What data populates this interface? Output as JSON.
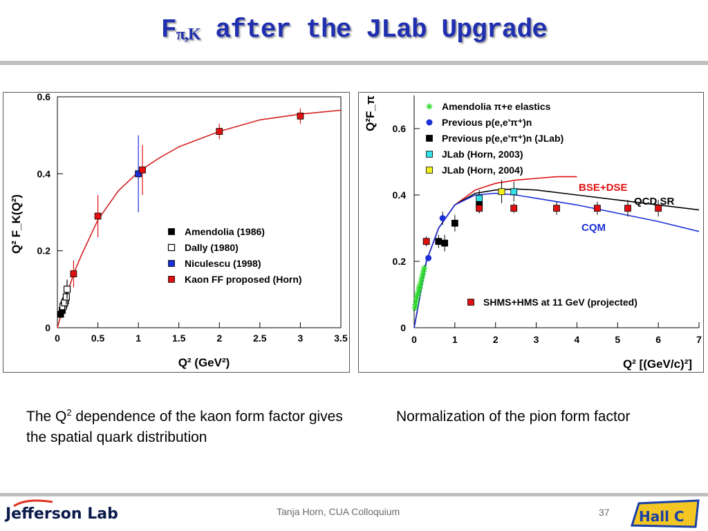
{
  "slide": {
    "title_main": "F",
    "title_sub": "π,K",
    "title_rest": " after the JLab Upgrade",
    "caption_left_pre": "The Q",
    "caption_left_sup": "2",
    "caption_left_post": " dependence of the kaon form factor gives the spatial quark distribution",
    "caption_right": "Normalization of the pion form factor",
    "footer": "Tanja Horn, CUA Colloquium",
    "page_number": "37",
    "logo_text": "Jefferson Lab",
    "logo_right_text": "Hall C",
    "colors": {
      "title": "#1f2fb0",
      "rule": "#bfbfbf"
    }
  },
  "chart_data": [
    {
      "type": "scatter",
      "xlim": [
        0,
        3.5
      ],
      "ylim": [
        0,
        0.6
      ],
      "xticks": [
        "0",
        "0.5",
        "1",
        "1.5",
        "2",
        "2.5",
        "3",
        "3.5"
      ],
      "xtick_values": [
        0,
        0.5,
        1,
        1.5,
        2,
        2.5,
        3,
        3.5
      ],
      "yticks": [
        "0",
        "0.2",
        "0.4",
        "0.6"
      ],
      "ytick_values": [
        0,
        0.2,
        0.4,
        0.6
      ],
      "xlabel": "Q² (GeV²)",
      "ylabel": "Q² F_K(Q²)",
      "legend_position": "bottom-right",
      "series": [
        {
          "name": "Amendolia (1986)",
          "marker": "filled-square",
          "color": "#000000",
          "x": [
            0.04,
            0.06,
            0.08,
            0.1
          ],
          "y": [
            0.035,
            0.045,
            0.06,
            0.07
          ],
          "err": [
            0.01,
            0.01,
            0.015,
            0.02
          ]
        },
        {
          "name": "Dally (1980)",
          "marker": "open-square",
          "color": "#000000",
          "x": [
            0.07,
            0.09,
            0.11,
            0.12
          ],
          "y": [
            0.055,
            0.065,
            0.08,
            0.1
          ],
          "err": [
            0.015,
            0.02,
            0.02,
            0.025
          ]
        },
        {
          "name": "Niculescu (1998)",
          "marker": "filled-square",
          "color": "#1b2fd8",
          "x": [
            1.0
          ],
          "y": [
            0.4
          ],
          "err": [
            0.1
          ]
        },
        {
          "name": "Kaon FF proposed (Horn)",
          "marker": "filled-square",
          "color": "#e01010",
          "x": [
            0.2,
            0.5,
            1.05,
            2.0,
            3.0
          ],
          "y": [
            0.14,
            0.29,
            0.41,
            0.51,
            0.55
          ],
          "err": [
            0.035,
            0.055,
            0.065,
            0.02,
            0.02
          ]
        }
      ],
      "curve": {
        "color": "#d42020",
        "x": [
          0,
          0.1,
          0.2,
          0.3,
          0.5,
          0.75,
          1.0,
          1.25,
          1.5,
          2.0,
          2.5,
          3.0,
          3.5
        ],
        "y": [
          0,
          0.075,
          0.14,
          0.19,
          0.28,
          0.355,
          0.405,
          0.44,
          0.47,
          0.51,
          0.54,
          0.555,
          0.565
        ]
      }
    },
    {
      "type": "scatter",
      "xlim": [
        0,
        7
      ],
      "ylim": [
        0,
        0.7
      ],
      "xticks": [
        "0",
        "1",
        "2",
        "3",
        "4",
        "5",
        "6",
        "7"
      ],
      "xtick_values": [
        0,
        1,
        2,
        3,
        4,
        5,
        6,
        7
      ],
      "yticks": [
        "0",
        "0.2",
        "0.4",
        "0.6"
      ],
      "ytick_values": [
        0,
        0.2,
        0.4,
        0.6
      ],
      "xlabel": "Q² [(GeV/c)²]",
      "ylabel": "Q²F_π",
      "legend_position": "top-left",
      "series": [
        {
          "name": "Amendolia π+e elastics",
          "marker": "star",
          "color": "#33dd33",
          "x": [
            0.02,
            0.03,
            0.05,
            0.06,
            0.08,
            0.09,
            0.11,
            0.12,
            0.14,
            0.15,
            0.17,
            0.19,
            0.21,
            0.23,
            0.25
          ],
          "y": [
            0.06,
            0.07,
            0.08,
            0.09,
            0.1,
            0.1,
            0.11,
            0.12,
            0.12,
            0.13,
            0.14,
            0.15,
            0.16,
            0.17,
            0.18
          ],
          "err": [
            0.01,
            0.01,
            0.01,
            0.01,
            0.01,
            0.01,
            0.01,
            0.01,
            0.01,
            0.01,
            0.01,
            0.01,
            0.01,
            0.01,
            0.01
          ]
        },
        {
          "name": "Previous p(e,e'π⁺)n",
          "marker": "circle",
          "color": "#1b2fd8",
          "x": [
            0.35,
            0.7,
            1.6
          ],
          "y": [
            0.21,
            0.33,
            0.37
          ],
          "err": [
            0.01,
            0.02,
            0.02
          ]
        },
        {
          "name": "Previous p(e,e'π⁺)n (JLab)",
          "marker": "filled-square",
          "color": "#000000",
          "x": [
            0.6,
            0.75,
            1.0,
            1.6
          ],
          "y": [
            0.26,
            0.255,
            0.315,
            0.37
          ],
          "err": [
            0.02,
            0.025,
            0.025,
            0.025
          ]
        },
        {
          "name": "JLab (Horn, 2003)",
          "marker": "filled-square",
          "color": "#33e0e8",
          "x": [
            1.6,
            2.45
          ],
          "y": [
            0.39,
            0.41
          ],
          "err": [
            0.025,
            0.03
          ]
        },
        {
          "name": "JLab (Horn, 2004)",
          "marker": "filled-square",
          "color": "#f0f020",
          "x": [
            2.15
          ],
          "y": [
            0.41
          ],
          "err": [
            0.035
          ]
        },
        {
          "name": "SHMS+HMS at 11 GeV (projected)",
          "marker": "filled-square",
          "color": "#e01010",
          "x": [
            0.3,
            1.6,
            2.45,
            3.5,
            4.5,
            5.25,
            6.0
          ],
          "y": [
            0.26,
            0.36,
            0.36,
            0.36,
            0.36,
            0.36,
            0.36
          ],
          "err": [
            0.015,
            0.015,
            0.015,
            0.02,
            0.02,
            0.025,
            0.025
          ]
        }
      ],
      "curves": [
        {
          "name": "BSE+DSE",
          "color": "#e01010",
          "x": [
            0,
            0.3,
            0.6,
            1.0,
            1.5,
            2.0,
            2.5,
            3.0,
            3.5,
            4.0
          ],
          "y": [
            0,
            0.2,
            0.3,
            0.37,
            0.415,
            0.435,
            0.445,
            0.45,
            0.455,
            0.455
          ]
        },
        {
          "name": "QCD SR",
          "color": "#000000",
          "x": [
            0,
            0.3,
            0.6,
            1.0,
            1.5,
            2.0,
            2.5,
            3.0,
            4.0,
            5.0,
            6.0,
            7.0
          ],
          "y": [
            0,
            0.2,
            0.3,
            0.37,
            0.405,
            0.415,
            0.418,
            0.415,
            0.4,
            0.385,
            0.37,
            0.355
          ]
        },
        {
          "name": "CQM",
          "color": "#1b2fd8",
          "x": [
            0,
            0.3,
            0.6,
            1.0,
            1.5,
            2.0,
            2.5,
            3.0,
            4.0,
            5.0,
            6.0,
            7.0
          ],
          "y": [
            0,
            0.2,
            0.3,
            0.37,
            0.4,
            0.405,
            0.4,
            0.39,
            0.37,
            0.345,
            0.32,
            0.29
          ]
        }
      ],
      "curve_labels": [
        "BSE+DSE",
        "QCD SR",
        "CQM"
      ],
      "curve_label_colors": [
        "#e01010",
        "#000000",
        "#1b2fd8"
      ]
    }
  ]
}
